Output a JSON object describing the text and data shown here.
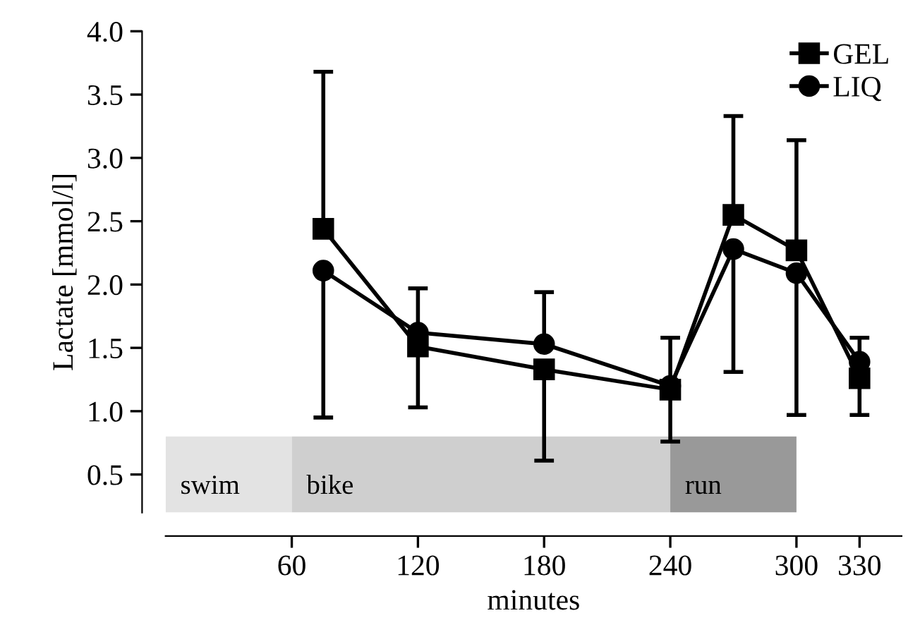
{
  "chart_data": {
    "type": "line",
    "xlabel": "minutes",
    "ylabel": "Lactate [mmol/l]",
    "x": [
      75,
      120,
      180,
      240,
      270,
      300,
      330
    ],
    "series": [
      {
        "name": "GEL",
        "color": "#000000",
        "marker": "square",
        "values": [
          2.44,
          1.51,
          1.33,
          1.17,
          2.55,
          2.27,
          1.26
        ],
        "errors": [
          [
            2.44,
            3.68
          ],
          [
            1.03,
            1.51
          ],
          [
            0.61,
            1.33
          ],
          [
            0.76,
            1.17
          ],
          [
            2.55,
            3.33
          ],
          [
            2.27,
            3.14
          ],
          [
            0.97,
            1.26
          ]
        ]
      },
      {
        "name": "LIQ",
        "color": "#000000",
        "marker": "circle",
        "values": [
          2.11,
          1.62,
          1.53,
          1.2,
          2.28,
          2.09,
          1.39
        ],
        "errors": [
          [
            0.95,
            2.11
          ],
          [
            1.62,
            1.97
          ],
          [
            1.53,
            1.94
          ],
          [
            1.2,
            1.58
          ],
          [
            1.31,
            2.28
          ],
          [
            0.97,
            2.09
          ],
          [
            1.39,
            1.58
          ]
        ]
      }
    ],
    "bands": [
      {
        "axis": "x",
        "from": 0,
        "to": 60,
        "label": "swim",
        "color": "#e3e3e3"
      },
      {
        "axis": "x",
        "from": 60,
        "to": 240,
        "label": "bike",
        "color": "#cfcfcf"
      },
      {
        "axis": "x",
        "from": 240,
        "to": 300,
        "label": "run",
        "color": "#999999"
      }
    ],
    "xlim": [
      0,
      350
    ],
    "xticks": [
      60,
      120,
      180,
      240,
      300,
      330
    ],
    "ylim": [
      0.2,
      4.0
    ],
    "yticks": [
      0.5,
      {
        "value": 1,
        "label": "1.0"
      },
      1.5,
      {
        "value": 2,
        "label": "2.0"
      },
      2.5,
      {
        "value": 3,
        "label": "3.0"
      },
      3.5,
      {
        "value": 4,
        "label": "4.0"
      }
    ],
    "grid": false,
    "legend": "top right",
    "line_style": "solid"
  }
}
